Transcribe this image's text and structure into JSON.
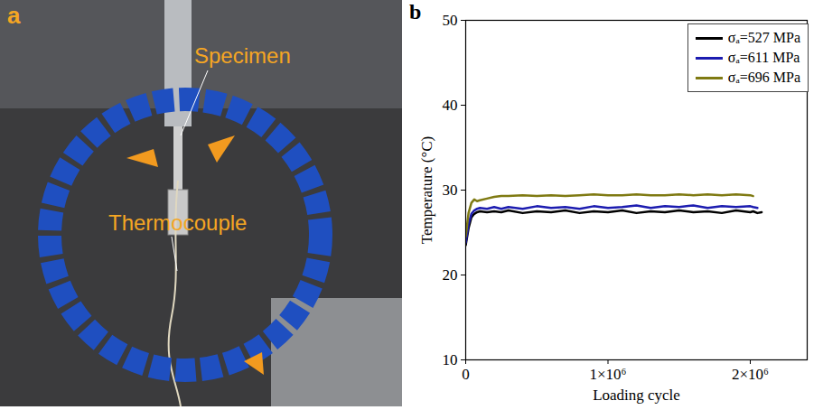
{
  "photo": {
    "panel": "a",
    "labels": [
      "Specimen",
      "Thermocouple"
    ]
  },
  "chart_data": {
    "type": "line",
    "panel": "b",
    "x_label": "Loading cycle",
    "y_label": "Temperature (°C)",
    "x": [
      0,
      20000,
      40000,
      60000,
      80000,
      100000,
      150000,
      200000,
      250000,
      300000,
      400000,
      500000,
      600000,
      700000,
      800000,
      900000,
      1000000,
      1100000,
      1200000,
      1300000,
      1400000,
      1500000,
      1600000,
      1700000,
      1800000,
      1900000,
      2000000,
      2020000,
      2050000,
      2080000
    ],
    "series": [
      {
        "name": "σₐ=527 MPa",
        "color": "#000000",
        "values": [
          23.5,
          25.5,
          26.8,
          27.2,
          27.4,
          27.5,
          27.4,
          27.5,
          27.4,
          27.6,
          27.3,
          27.5,
          27.4,
          27.6,
          27.3,
          27.5,
          27.4,
          27.6,
          27.3,
          27.5,
          27.4,
          27.6,
          27.4,
          27.5,
          27.3,
          27.6,
          27.4,
          27.5,
          27.3,
          27.4
        ]
      },
      {
        "name": "σₐ=611 MPa",
        "color": "#1c1cb0",
        "values": [
          23.8,
          26.0,
          27.2,
          27.6,
          27.8,
          27.9,
          27.8,
          28.0,
          27.8,
          28.0,
          27.8,
          28.1,
          27.9,
          28.0,
          27.8,
          28.1,
          27.9,
          28.0,
          28.2,
          27.9,
          28.1,
          28.0,
          28.2,
          27.9,
          28.1,
          28.0,
          28.1,
          28.0,
          27.9,
          null
        ]
      },
      {
        "name": "σₐ=696 MPa",
        "color": "#7f7a12",
        "values": [
          24.5,
          27.3,
          28.5,
          28.9,
          28.7,
          28.8,
          29.0,
          29.2,
          29.3,
          29.3,
          29.4,
          29.3,
          29.4,
          29.3,
          29.4,
          29.5,
          29.4,
          29.4,
          29.5,
          29.4,
          29.4,
          29.5,
          29.4,
          29.5,
          29.4,
          29.5,
          29.4,
          29.3,
          null,
          null
        ]
      }
    ],
    "xlim": [
      0,
      2400000
    ],
    "xticks": [
      0,
      {
        "value": 1000000,
        "label": "1×10⁶"
      },
      {
        "value": 2000000,
        "label": "2×10⁶"
      }
    ],
    "ylim": [
      10,
      50
    ],
    "yticks": [
      10,
      20,
      30,
      40,
      50
    ],
    "legend": "top-right",
    "grid": false
  }
}
